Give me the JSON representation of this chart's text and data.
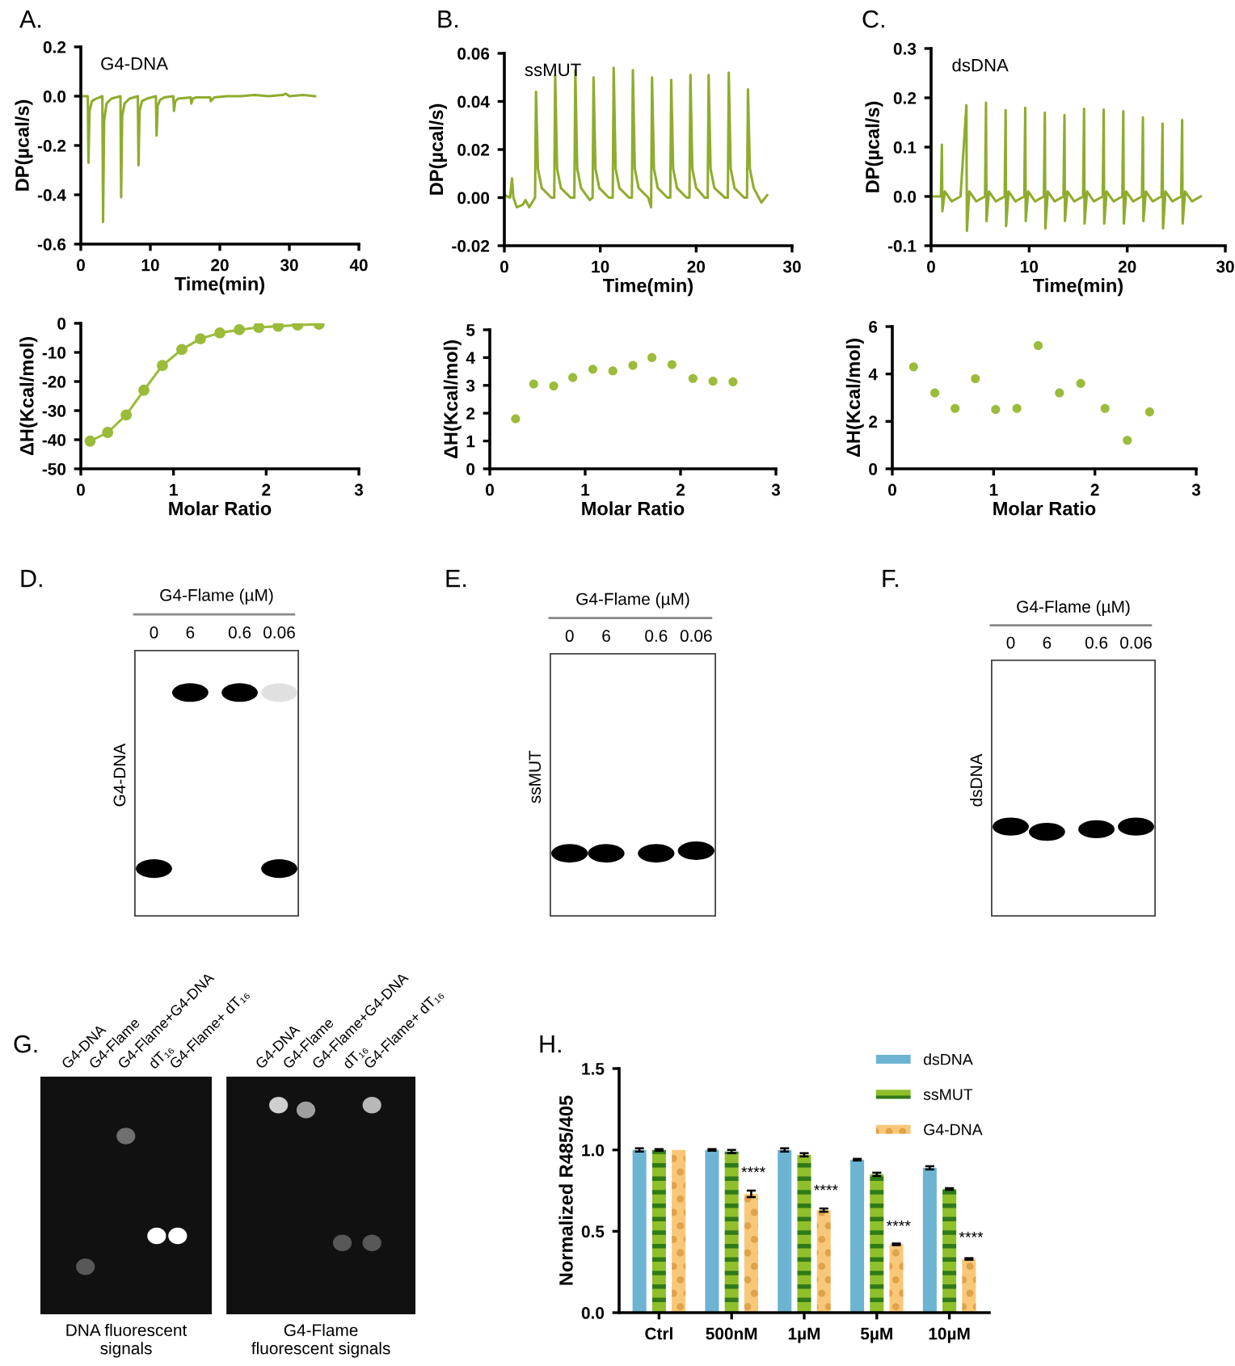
{
  "chart_data": [
    {
      "type": "line",
      "title": "A.",
      "xlabel": "Time(min)",
      "ylabel": "DP(µcal/s)",
      "annotations": [
        "G4-DNA"
      ],
      "color": "#8fac2e",
      "x": [
        0,
        1.0,
        1.1,
        1.25,
        1.6,
        2.2,
        3.1,
        3.2,
        3.35,
        3.7,
        4.4,
        5.7,
        5.8,
        5.95,
        6.3,
        7.0,
        8.2,
        8.3,
        8.45,
        8.8,
        9.5,
        10.8,
        10.9,
        11.05,
        11.4,
        12.0,
        13.3,
        13.4,
        13.6,
        14.0,
        15.8,
        15.9,
        16.1,
        16.6,
        18.6,
        18.7,
        19.2,
        21,
        23,
        25,
        27,
        29,
        29.5,
        30,
        32,
        33.7
      ],
      "values": [
        0,
        0,
        -0.27,
        -0.06,
        -0.02,
        -0.01,
        0,
        -0.51,
        -0.1,
        -0.03,
        -0.01,
        0,
        -0.41,
        -0.08,
        -0.03,
        -0.01,
        0,
        -0.28,
        -0.06,
        -0.02,
        -0.01,
        0,
        -0.16,
        -0.04,
        -0.015,
        -0.005,
        0,
        -0.06,
        -0.02,
        -0.01,
        -0.005,
        -0.03,
        -0.01,
        -0.005,
        -0.005,
        -0.02,
        -0.005,
        0,
        0,
        0.005,
        0,
        0.005,
        0.01,
        0,
        0.005,
        0
      ],
      "xlim": [
        0,
        40
      ],
      "xticks": [
        0,
        10,
        20,
        30,
        40
      ],
      "ylim": [
        -0.6,
        0.2
      ],
      "yticks": [
        -0.6,
        -0.4,
        -0.2,
        {
          "value": 0,
          "label": "0.0"
        },
        0.2
      ]
    },
    {
      "type": "line",
      "title": "B.",
      "xlabel": "Time(min)",
      "ylabel": "DP(µcal/s)",
      "annotations": [
        "ssMUT"
      ],
      "color": "#8fac2e",
      "x": [
        0,
        0.6,
        0.8,
        0.95,
        1.3,
        1.9,
        2.2,
        2.6,
        3.2,
        3.3,
        3.5,
        3.9,
        4.9,
        5.2,
        5.3,
        5.5,
        5.9,
        6.9,
        7.3,
        7.4,
        7.6,
        8.0,
        8.9,
        9.2,
        9.3,
        9.5,
        9.9,
        10.9,
        11.3,
        11.4,
        11.6,
        12.0,
        13.0,
        13.3,
        13.4,
        13.6,
        14.0,
        15.0,
        15.3,
        15.4,
        15.6,
        16.0,
        17.0,
        17.3,
        17.4,
        17.6,
        18.0,
        19.0,
        19.3,
        19.4,
        19.6,
        20.0,
        20.9,
        21.2,
        21.3,
        21.5,
        21.9,
        23.0,
        23.3,
        23.4,
        23.6,
        24.0,
        25.0,
        25.3,
        25.4,
        25.6,
        26.0,
        26.8,
        27.4
      ],
      "values": [
        0.001,
        0,
        0.008,
        0,
        -0.004,
        -0.003,
        -0.001,
        -0.004,
        0,
        0.044,
        0.012,
        0.004,
        0,
        0,
        0.051,
        0.012,
        0.004,
        0,
        0,
        0.053,
        0.012,
        0.004,
        -0.001,
        0,
        0.05,
        0.012,
        0.004,
        0,
        0,
        0.054,
        0.012,
        0.004,
        0,
        0,
        0.053,
        0.012,
        0.004,
        0,
        -0.004,
        0.05,
        0.012,
        0.004,
        0,
        0,
        0.049,
        0.012,
        0.004,
        0,
        0,
        0.051,
        0.012,
        0.004,
        0,
        0,
        0.051,
        0.012,
        0.004,
        0,
        0,
        0.052,
        0.012,
        0.004,
        0,
        0,
        0.045,
        0.012,
        0.004,
        -0.002,
        0.001
      ],
      "xlim": [
        0,
        30
      ],
      "xticks": [
        0,
        10,
        20,
        30
      ],
      "ylim": [
        -0.02,
        0.06
      ],
      "yticks": [
        -0.02,
        {
          "value": 0,
          "label": "0.00"
        },
        0.02,
        0.04,
        0.06
      ]
    },
    {
      "type": "line",
      "title": "C.",
      "xlabel": "Time(min)",
      "ylabel": "DP(µcal/s)",
      "annotations": [
        "dsDNA"
      ],
      "color": "#8fac2e",
      "x": [
        0,
        1.0,
        1.1,
        1.15,
        1.4,
        2.1,
        3.0,
        3.6,
        3.65,
        3.9,
        4.6,
        5.5,
        5.6,
        5.65,
        5.9,
        6.6,
        7.5,
        7.6,
        7.65,
        7.9,
        8.6,
        9.5,
        9.6,
        9.65,
        9.9,
        10.6,
        11.5,
        11.6,
        11.65,
        11.9,
        12.6,
        13.5,
        13.6,
        13.65,
        13.9,
        14.6,
        15.5,
        15.6,
        15.65,
        15.9,
        16.6,
        17.5,
        17.6,
        17.65,
        17.9,
        18.6,
        19.5,
        19.6,
        19.65,
        19.9,
        20.6,
        21.5,
        21.6,
        21.65,
        21.9,
        22.6,
        23.5,
        23.6,
        23.65,
        23.9,
        24.6,
        25.5,
        25.6,
        25.65,
        25.9,
        26.6,
        27.5
      ],
      "values": [
        0,
        0,
        0.105,
        -0.03,
        0.01,
        -0.01,
        0,
        0.185,
        -0.07,
        0.01,
        -0.01,
        0,
        0.19,
        -0.05,
        0.01,
        -0.01,
        0,
        0.175,
        -0.06,
        0.01,
        -0.01,
        0,
        0.18,
        -0.05,
        0.01,
        -0.01,
        0,
        0.17,
        -0.065,
        0.01,
        -0.01,
        0,
        0.165,
        -0.05,
        0.01,
        -0.01,
        0,
        0.178,
        -0.055,
        0.01,
        -0.01,
        0,
        0.176,
        -0.055,
        0.01,
        -0.01,
        0,
        0.173,
        -0.055,
        0.01,
        -0.01,
        0,
        0.16,
        -0.05,
        0.01,
        -0.01,
        0,
        0.148,
        -0.065,
        0.01,
        -0.01,
        0,
        0.155,
        -0.055,
        0.01,
        -0.01,
        0
      ],
      "xlim": [
        0,
        30
      ],
      "xticks": [
        0,
        10,
        20,
        30
      ],
      "ylim": [
        -0.1,
        0.3
      ],
      "yticks": [
        -0.1,
        {
          "value": 0,
          "label": "0.0"
        },
        0.1,
        0.2,
        0.3
      ]
    },
    {
      "type": "line",
      "xlabel": "Molar Ratio",
      "ylabel": "ΔH(Kcal/mol)",
      "color": "#9bbb3a",
      "marker": "circle",
      "x": [
        0.1,
        0.29,
        0.49,
        0.68,
        0.88,
        1.09,
        1.29,
        1.5,
        1.71,
        1.92,
        2.13,
        2.34,
        2.57
      ],
      "values": [
        -40.5,
        -37.5,
        -31.5,
        -23,
        -14.5,
        -9,
        -5.3,
        -3.3,
        -2.2,
        -1.4,
        -1,
        -0.6,
        -0.3
      ],
      "xlim": [
        0,
        3
      ],
      "xticks": [
        0,
        1,
        2,
        3
      ],
      "ylim": [
        -50,
        0
      ],
      "yticks": [
        -50,
        -40,
        -30,
        -20,
        -10,
        0
      ]
    },
    {
      "type": "scatter",
      "xlabel": "Molar Ratio",
      "ylabel": "ΔH(Kcal/mol)",
      "color": "#9bbb3a",
      "marker": "circle",
      "x": [
        0.27,
        0.46,
        0.67,
        0.87,
        1.08,
        1.29,
        1.5,
        1.7,
        1.91,
        2.13,
        2.34,
        2.55
      ],
      "values": [
        1.8,
        3.05,
        2.98,
        3.28,
        3.58,
        3.52,
        3.72,
        4.0,
        3.75,
        3.25,
        3.15,
        3.13
      ],
      "xlim": [
        0,
        3
      ],
      "xticks": [
        0,
        1,
        2,
        3
      ],
      "ylim": [
        0,
        5
      ],
      "yticks": [
        0,
        1,
        2,
        3,
        4,
        5
      ]
    },
    {
      "type": "scatter",
      "xlabel": "Molar Ratio",
      "ylabel": "ΔH(Kcal/mol)",
      "color": "#9bbb3a",
      "marker": "circle",
      "x": [
        0.21,
        0.42,
        0.62,
        0.82,
        1.02,
        1.23,
        1.44,
        1.65,
        1.86,
        2.1,
        2.32,
        2.54
      ],
      "values": [
        4.3,
        3.2,
        2.55,
        3.8,
        2.5,
        2.55,
        5.2,
        3.2,
        3.6,
        2.55,
        1.2,
        2.4
      ],
      "xlim": [
        0,
        3
      ],
      "xticks": [
        0,
        1,
        2,
        3
      ],
      "ylim": [
        0,
        6
      ],
      "yticks": [
        0,
        2,
        4,
        6
      ]
    },
    {
      "type": "other",
      "title": "D.",
      "annotations": [
        "G4-Flame (µM)",
        "0",
        "6",
        "0.6",
        "0.06",
        "G4-DNA"
      ]
    },
    {
      "type": "other",
      "title": "E.",
      "annotations": [
        "G4-Flame (µM)",
        "0",
        "6",
        "0.6",
        "0.06",
        "ssMUT"
      ]
    },
    {
      "type": "other",
      "title": "F.",
      "annotations": [
        "G4-Flame (µM)",
        "0",
        "6",
        "0.6",
        "0.06",
        "dsDNA"
      ]
    },
    {
      "type": "other",
      "title": "G.",
      "annotations": [
        "G4-DNA",
        "G4-Flame",
        "G4-Flame+G4-DNA",
        "dT₁₆",
        "G4-Flame+ dT₁₆",
        "G4-DNA",
        "G4-Flame",
        "G4-Flame+G4-DNA",
        "dT₁₆",
        "G4-Flame+ dT₁₆",
        "DNA fluorescent\nsignals",
        "G4-Flame\nfluorescent signals"
      ]
    },
    {
      "type": "bar",
      "title": "H.",
      "ylabel": "Normalized R485/405",
      "categories": [
        "Ctrl",
        "500nM",
        "1µM",
        "5µM",
        "10µM"
      ],
      "series": [
        {
          "name": "dsDNA",
          "color": "#6cb4d2",
          "values": [
            1.0,
            1.0,
            1.0,
            0.94,
            0.89
          ],
          "errors": [
            0.01,
            0.005,
            0.01,
            0.005,
            0.01
          ]
        },
        {
          "name": "ssMUT",
          "color": "#8fbf2a",
          "values": [
            1.0,
            0.99,
            0.97,
            0.85,
            0.76
          ],
          "errors": [
            0.005,
            0.01,
            0.01,
            0.01,
            0.005
          ]
        },
        {
          "name": "G4-DNA",
          "color": "#f8c878",
          "values": [
            1.0,
            0.73,
            0.63,
            0.42,
            0.33
          ],
          "errors": [
            null,
            0.02,
            0.01,
            0.005,
            0.005
          ]
        }
      ],
      "ylim": [
        0,
        1.5
      ],
      "yticks": [
        {
          "value": 0,
          "label": "0.0"
        },
        {
          "value": 0.5,
          "label": "0.5"
        },
        {
          "value": 1,
          "label": "1.0"
        },
        {
          "value": 1.5,
          "label": "1.5"
        }
      ],
      "legend": "top right",
      "annotations": [
        {
          "text": "****",
          "x": "500nM",
          "y": 0.81
        },
        {
          "text": "****",
          "x": "1µM",
          "y": 0.7
        },
        {
          "text": "****",
          "x": "5µM",
          "y": 0.48
        },
        {
          "text": "****",
          "x": "10µM",
          "y": 0.41
        }
      ]
    }
  ]
}
